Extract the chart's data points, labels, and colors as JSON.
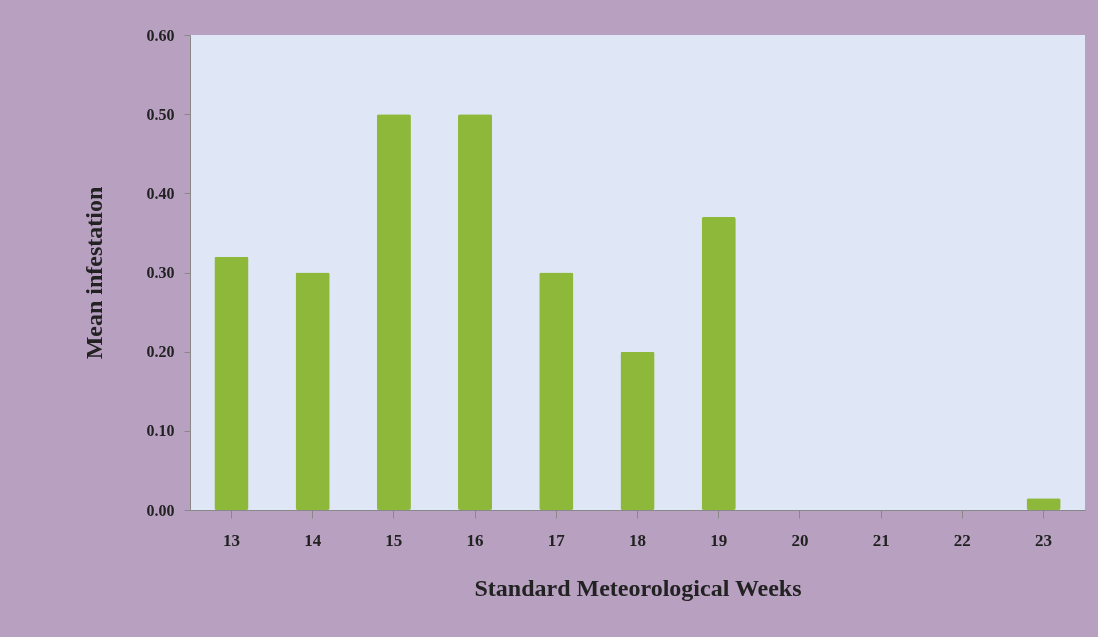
{
  "chart_data": {
    "type": "bar",
    "xlabel": "Standard Meteorological Weeks",
    "ylabel": "Mean infestation",
    "categories": [
      "13",
      "14",
      "15",
      "16",
      "17",
      "18",
      "19",
      "20",
      "21",
      "22",
      "23"
    ],
    "values": [
      0.32,
      0.3,
      0.5,
      0.5,
      0.3,
      0.2,
      0.37,
      0,
      0,
      0,
      0.015
    ],
    "color": "#8db83a",
    "ylim": [
      0,
      0.6
    ],
    "yticks": [
      {
        "value": 0,
        "label": "0.00"
      },
      {
        "value": 0.1,
        "label": "0.10"
      },
      {
        "value": 0.2,
        "label": "0.20"
      },
      {
        "value": 0.3,
        "label": "0.30"
      },
      {
        "value": 0.4,
        "label": "0.40"
      },
      {
        "value": 0.5,
        "label": "0.50"
      },
      {
        "value": 0.6,
        "label": "0.60"
      }
    ],
    "grid": false
  }
}
